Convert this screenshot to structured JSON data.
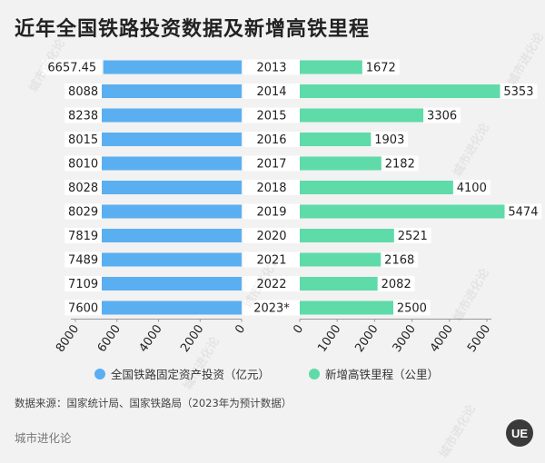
{
  "title": "近年全国铁路投资数据及新增高铁里程",
  "chart_data": {
    "type": "bar",
    "categories": [
      "2013",
      "2014",
      "2015",
      "2016",
      "2017",
      "2018",
      "2019",
      "2020",
      "2021",
      "2022",
      "2023*"
    ],
    "series": [
      {
        "name": "全国铁路固定资产投资（亿元）",
        "value_labels": [
          "6657.45",
          "8088",
          "8238",
          "8015",
          "8010",
          "8028",
          "8029",
          "7819",
          "7489",
          "7109",
          "7600"
        ],
        "values": [
          6657.45,
          8088,
          8238,
          8015,
          8010,
          8028,
          8029,
          7819,
          7489,
          7109,
          7600
        ],
        "color": "#5aaff0",
        "xlim": [
          0,
          8000
        ],
        "ticks": [
          "8000",
          "6000",
          "4000",
          "2000",
          "0"
        ]
      },
      {
        "name": "新增高铁里程（公里）",
        "value_labels": [
          "1672",
          "5353",
          "3306",
          "1903",
          "2182",
          "4100",
          "5474",
          "2521",
          "2168",
          "2082",
          "2500"
        ],
        "values": [
          1672,
          5353,
          3306,
          1903,
          2182,
          4100,
          5474,
          2521,
          2168,
          2082,
          2500
        ],
        "color": "#5edba8",
        "xlim": [
          0,
          5000
        ],
        "ticks": [
          "0",
          "1000",
          "2000",
          "3000",
          "4000",
          "5000"
        ]
      }
    ]
  },
  "legend": {
    "left": "全国铁路固定资产投资（亿元）",
    "right": "新增高铁里程（公里）"
  },
  "source": "数据来源：国家统计局、国家铁路局（2023年为预计数据）",
  "brand": "城市进化论",
  "logo": "UE",
  "watermark": "城市进化论"
}
